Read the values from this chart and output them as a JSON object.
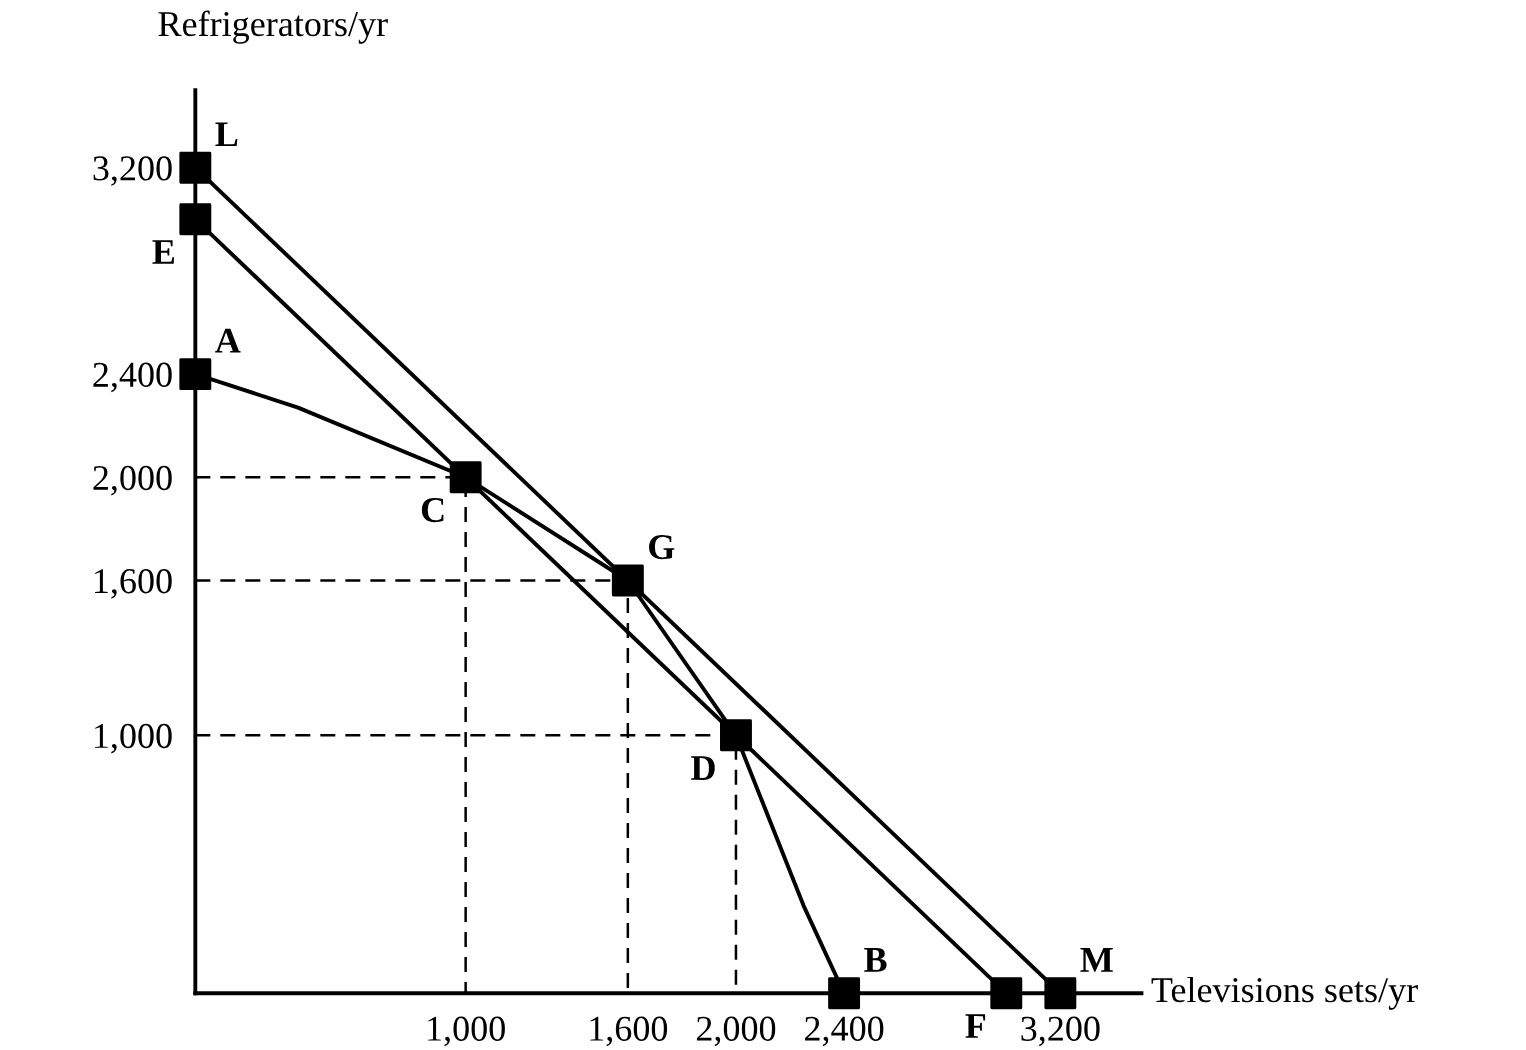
{
  "chart_data": {
    "type": "line",
    "xlabel": "Televisions sets/yr",
    "ylabel": "Refrigerators/yr",
    "xlim": [
      0,
      3500
    ],
    "ylim": [
      0,
      3500
    ],
    "xticks": [
      {
        "value": 1000,
        "label": "1,000"
      },
      {
        "value": 1600,
        "label": "1,600"
      },
      {
        "value": 2000,
        "label": "2,000"
      },
      {
        "value": 2400,
        "label": "2,400"
      },
      {
        "value": 3200,
        "label": "3,200"
      }
    ],
    "yticks": [
      {
        "value": 1000,
        "label": "1,000"
      },
      {
        "value": 1600,
        "label": "1,600"
      },
      {
        "value": 2000,
        "label": "2,000"
      },
      {
        "value": 2400,
        "label": "2,400"
      },
      {
        "value": 3200,
        "label": "3,200"
      }
    ],
    "grid": false,
    "legend": false,
    "series": [
      {
        "color": "#000000",
        "line_style": "solid",
        "marker": "none",
        "x": [
          0,
          380,
          1000,
          1600,
          2000,
          2250,
          2400
        ],
        "values": [
          2400,
          2270,
          2000,
          1600,
          1000,
          340,
          0
        ]
      },
      {
        "type": "line",
        "color": "#000000",
        "line_style": "solid",
        "marker": "none",
        "x": [
          0,
          3000
        ],
        "values": [
          3000,
          0
        ]
      },
      {
        "type": "line",
        "color": "#000000",
        "line_style": "solid",
        "marker": "none",
        "x": [
          0,
          3200
        ],
        "values": [
          3200,
          0
        ]
      },
      {
        "type": "line",
        "color": "#000000",
        "line_style": "dashed",
        "marker": "none",
        "x": [
          0,
          1000,
          1000
        ],
        "values": [
          2000,
          2000,
          0
        ]
      },
      {
        "type": "line",
        "color": "#000000",
        "line_style": "dashed",
        "marker": "none",
        "x": [
          0,
          1600,
          1600
        ],
        "values": [
          1600,
          1600,
          0
        ]
      },
      {
        "type": "line",
        "color": "#000000",
        "line_style": "dashed",
        "marker": "none",
        "x": [
          0,
          2000,
          2000
        ],
        "values": [
          1000,
          1000,
          0
        ]
      },
      {
        "type": "scatter",
        "color": "#000000",
        "marker": "square",
        "x": [
          0,
          0,
          0,
          1000,
          1600,
          2000,
          2400,
          3000,
          3200
        ],
        "values": [
          3200,
          3000,
          2400,
          2000,
          1600,
          1000,
          0,
          0,
          0
        ]
      }
    ],
    "annotations": [
      {
        "text": "L",
        "x": 0,
        "y": 3200
      },
      {
        "text": "E",
        "x": 0,
        "y": 3000
      },
      {
        "text": "A",
        "x": 0,
        "y": 2400
      },
      {
        "text": "C",
        "x": 1000,
        "y": 2000
      },
      {
        "text": "G",
        "x": 1600,
        "y": 1600
      },
      {
        "text": "D",
        "x": 2000,
        "y": 1000
      },
      {
        "text": "B",
        "x": 2400,
        "y": 0
      },
      {
        "text": "F",
        "x": 3000,
        "y": 0
      },
      {
        "text": "M",
        "x": 3200,
        "y": 0
      }
    ]
  }
}
